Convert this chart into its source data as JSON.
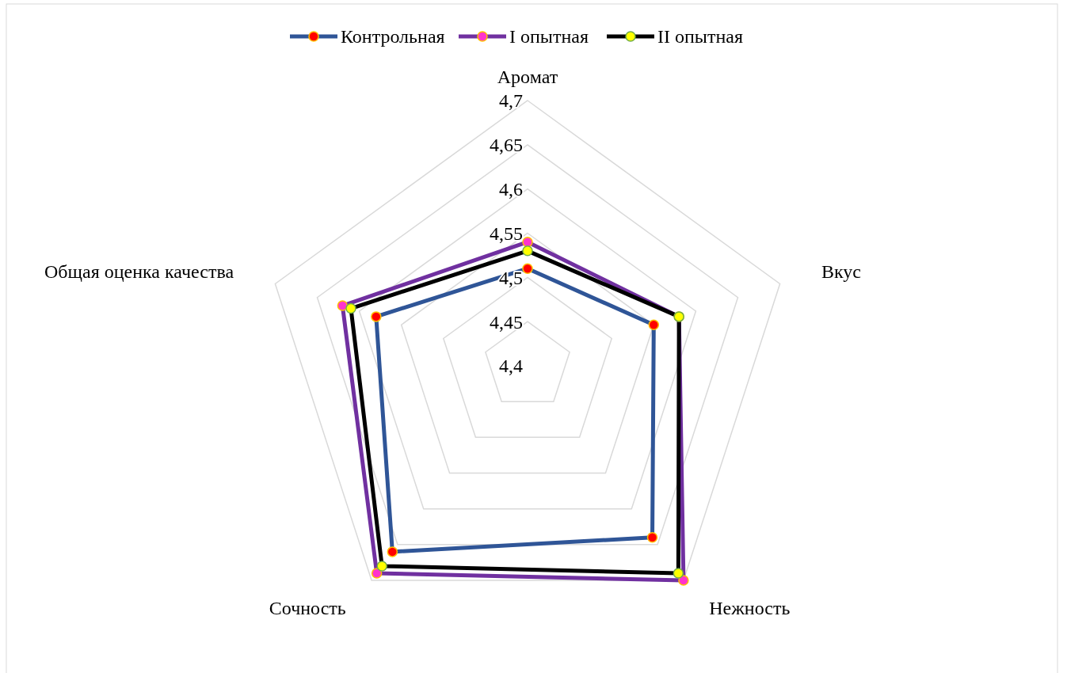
{
  "chart_data": {
    "type": "radar",
    "categories": [
      "Аромат",
      "Вкус",
      "Нежность",
      "Сочность",
      "Общая оценка качества"
    ],
    "series": [
      {
        "name": "Контрольная",
        "color": "#2f5597",
        "values": [
          4.51,
          4.55,
          4.64,
          4.66,
          4.58
        ]
      },
      {
        "name": "I опытная",
        "color": "#7030a0",
        "values": [
          4.54,
          4.58,
          4.7,
          4.69,
          4.62
        ]
      },
      {
        "name": "II опытная",
        "color": "#000000",
        "values": [
          4.53,
          4.58,
          4.69,
          4.68,
          4.61
        ]
      }
    ],
    "ylim": [
      4.4,
      4.7
    ],
    "yticks": [
      {
        "value": 4.4,
        "label": "4,4"
      },
      {
        "value": 4.45,
        "label": "4,45"
      },
      {
        "value": 4.5,
        "label": "4,5"
      },
      {
        "value": 4.55,
        "label": "4,55"
      },
      {
        "value": 4.6,
        "label": "4,6"
      },
      {
        "value": 4.65,
        "label": "4,65"
      },
      {
        "value": 4.7,
        "label": "4,7"
      }
    ],
    "grid": true,
    "legend": "top",
    "marker": "circle",
    "line_style": "solid"
  }
}
